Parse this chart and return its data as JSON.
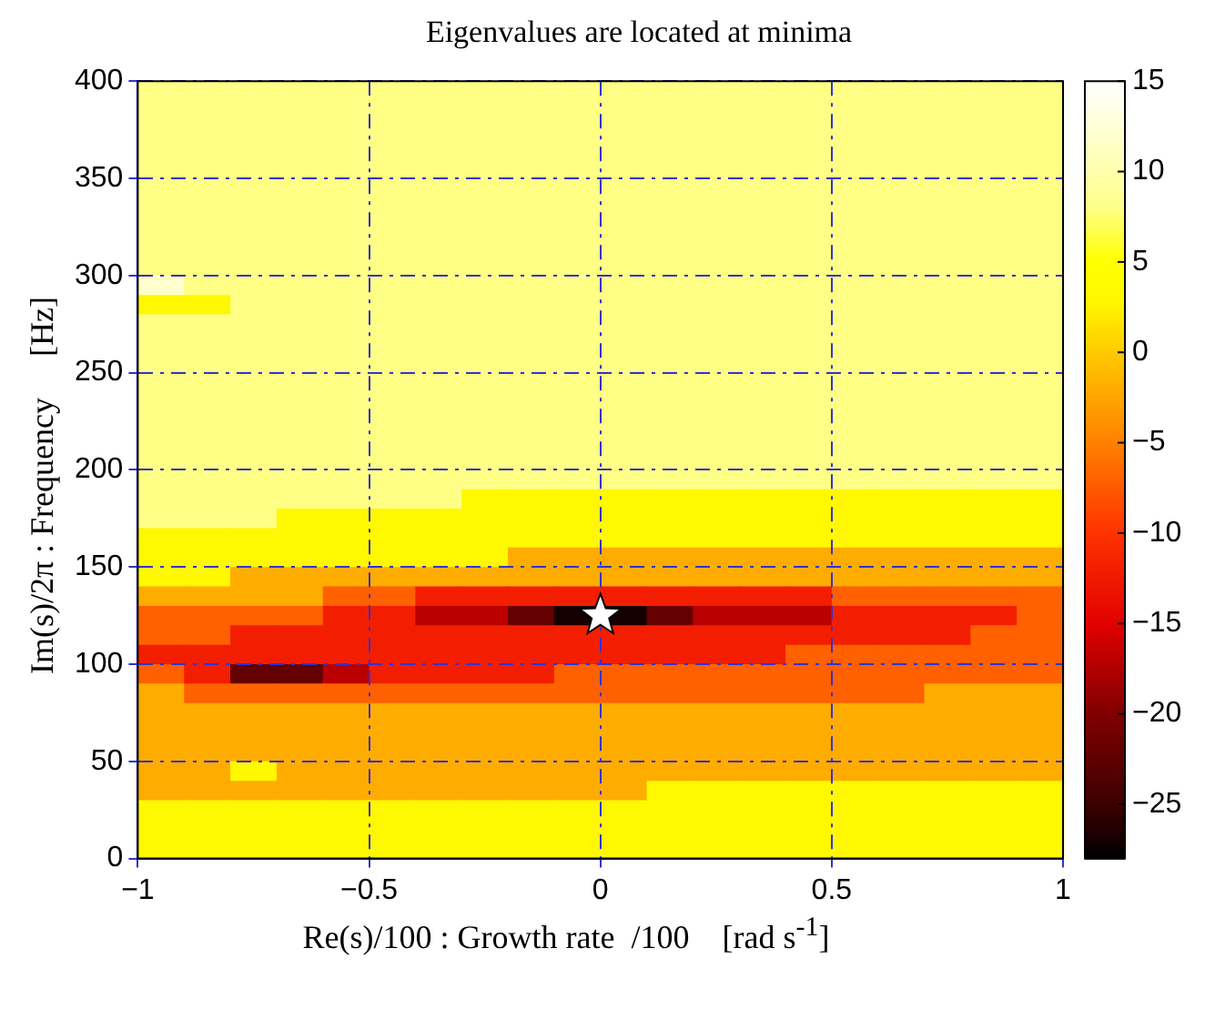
{
  "chart_data": {
    "type": "heatmap",
    "title": "Eigenvalues are located at minima",
    "xlabel": "Re(s)/100 : Growth rate  /100    [rad s$^{-1}$]",
    "ylabel": "Im(s)/2π : Frequency     [Hz]",
    "xlim": [
      -1,
      1
    ],
    "ylim": [
      0,
      400
    ],
    "xticks": [
      -1,
      -0.5,
      0,
      0.5,
      1
    ],
    "yticks": [
      0,
      50,
      100,
      150,
      200,
      250,
      300,
      350,
      400
    ],
    "grid": true,
    "marker": "star",
    "clim": [
      -28,
      15
    ],
    "cticks": [
      -25,
      -20,
      -15,
      -10,
      -5,
      0,
      5,
      10,
      15
    ],
    "series": [
      {
        "type": "scatter",
        "x": [
          0
        ],
        "values": [
          125
        ],
        "color": "#ffffff"
      }
    ],
    "cells": [
      [
        8,
        8,
        8,
        8,
        8,
        8,
        8,
        8,
        8,
        8,
        8,
        8,
        8,
        8,
        8,
        8,
        8,
        8,
        8,
        8
      ],
      [
        8,
        8,
        8,
        8,
        8,
        8,
        8,
        8,
        8,
        8,
        8,
        8,
        8,
        8,
        8,
        8,
        8,
        8,
        8,
        8
      ],
      [
        8,
        8,
        8,
        8,
        8,
        8,
        8,
        8,
        8,
        8,
        8,
        8,
        8,
        8,
        8,
        8,
        8,
        8,
        8,
        8
      ],
      [
        8,
        8,
        8,
        8,
        8,
        8,
        8,
        8,
        8,
        8,
        8,
        8,
        8,
        8,
        8,
        8,
        8,
        8,
        8,
        8
      ],
      [
        8,
        8,
        8,
        8,
        8,
        8,
        8,
        8,
        8,
        8,
        8,
        8,
        8,
        8,
        8,
        8,
        8,
        8,
        8,
        8
      ],
      [
        8,
        8,
        8,
        8,
        8,
        8,
        8,
        8,
        8,
        8,
        8,
        8,
        8,
        8,
        8,
        8,
        8,
        8,
        8,
        8
      ],
      [
        8,
        8,
        8,
        8,
        8,
        8,
        8,
        8,
        8,
        8,
        8,
        8,
        8,
        8,
        8,
        8,
        8,
        8,
        8,
        8
      ],
      [
        8,
        8,
        8,
        8,
        8,
        8,
        8,
        8,
        8,
        8,
        8,
        8,
        8,
        8,
        8,
        8,
        8,
        8,
        8,
        8
      ],
      [
        8,
        8,
        8,
        8,
        8,
        8,
        8,
        8,
        8,
        8,
        8,
        8,
        8,
        8,
        8,
        8,
        8,
        8,
        8,
        8
      ],
      [
        8,
        8,
        8,
        8,
        8,
        8,
        8,
        8,
        8,
        8,
        8,
        8,
        8,
        8,
        8,
        8,
        8,
        8,
        8,
        8
      ],
      [
        12,
        8,
        8,
        8,
        8,
        8,
        8,
        8,
        8,
        8,
        8,
        8,
        8,
        8,
        8,
        8,
        8,
        8,
        8,
        8
      ],
      [
        3,
        3,
        8,
        8,
        8,
        8,
        8,
        8,
        8,
        8,
        8,
        8,
        8,
        8,
        8,
        8,
        8,
        8,
        8,
        8
      ],
      [
        8,
        8,
        8,
        8,
        8,
        8,
        8,
        8,
        8,
        8,
        8,
        8,
        8,
        8,
        8,
        8,
        8,
        8,
        8,
        8
      ],
      [
        8,
        8,
        8,
        8,
        8,
        8,
        8,
        8,
        8,
        8,
        8,
        8,
        8,
        8,
        8,
        8,
        8,
        8,
        8,
        8
      ],
      [
        8,
        8,
        8,
        8,
        8,
        8,
        8,
        8,
        8,
        8,
        8,
        8,
        8,
        8,
        8,
        8,
        8,
        8,
        8,
        8
      ],
      [
        8,
        8,
        8,
        8,
        8,
        8,
        8,
        8,
        8,
        8,
        8,
        8,
        8,
        8,
        8,
        8,
        8,
        8,
        8,
        8
      ],
      [
        8,
        8,
        8,
        8,
        8,
        8,
        8,
        8,
        8,
        8,
        8,
        8,
        8,
        8,
        8,
        8,
        8,
        8,
        8,
        8
      ],
      [
        8,
        8,
        8,
        8,
        8,
        8,
        8,
        8,
        8,
        8,
        8,
        8,
        8,
        8,
        8,
        8,
        8,
        8,
        8,
        8
      ],
      [
        8,
        8,
        8,
        8,
        8,
        8,
        8,
        8,
        8,
        8,
        8,
        8,
        8,
        8,
        8,
        8,
        8,
        8,
        8,
        8
      ],
      [
        8,
        8,
        8,
        8,
        8,
        8,
        8,
        8,
        8,
        8,
        8,
        8,
        8,
        8,
        8,
        8,
        8,
        8,
        8,
        8
      ],
      [
        8,
        8,
        8,
        8,
        8,
        8,
        8,
        8,
        8,
        8,
        8,
        8,
        8,
        8,
        8,
        8,
        8,
        8,
        8,
        8
      ],
      [
        8,
        8,
        8,
        8,
        8,
        8,
        8,
        3,
        3,
        3,
        3,
        3,
        3,
        3,
        3,
        3,
        3,
        3,
        3,
        3
      ],
      [
        8,
        8,
        8,
        3,
        3,
        3,
        3,
        3,
        3,
        3,
        3,
        3,
        3,
        3,
        3,
        3,
        3,
        3,
        3,
        3
      ],
      [
        3,
        3,
        3,
        3,
        3,
        3,
        3,
        3,
        3,
        3,
        3,
        3,
        3,
        3,
        3,
        3,
        3,
        3,
        3,
        3
      ],
      [
        3,
        3,
        3,
        3,
        3,
        3,
        3,
        3,
        -2,
        -2,
        -2,
        -2,
        -2,
        -2,
        -2,
        -2,
        -2,
        -2,
        -2,
        -2
      ],
      [
        3,
        3,
        -2,
        -2,
        -2,
        -2,
        -2,
        -2,
        -2,
        -2,
        -2,
        -2,
        -2,
        -2,
        -2,
        -2,
        -2,
        -2,
        -2,
        -2
      ],
      [
        -2,
        -2,
        -2,
        -2,
        -7,
        -7,
        -12,
        -12,
        -12,
        -12,
        -12,
        -12,
        -12,
        -12,
        -12,
        -7,
        -7,
        -7,
        -7,
        -7
      ],
      [
        -7,
        -7,
        -7,
        -7,
        -12,
        -12,
        -17,
        -17,
        -22,
        -27,
        -27,
        -22,
        -17,
        -17,
        -17,
        -12,
        -12,
        -12,
        -12,
        -7
      ],
      [
        -7,
        -7,
        -12,
        -12,
        -12,
        -12,
        -12,
        -12,
        -12,
        -12,
        -12,
        -12,
        -12,
        -12,
        -12,
        -12,
        -12,
        -12,
        -7,
        -7
      ],
      [
        -12,
        -12,
        -12,
        -12,
        -12,
        -12,
        -12,
        -12,
        -12,
        -12,
        -12,
        -12,
        -12,
        -12,
        -7,
        -7,
        -7,
        -7,
        -7,
        -7
      ],
      [
        -7,
        -12,
        -22,
        -22,
        -17,
        -12,
        -12,
        -12,
        -12,
        -7,
        -7,
        -7,
        -7,
        -7,
        -7,
        -7,
        -7,
        -7,
        -7,
        -7
      ],
      [
        -2,
        -7,
        -7,
        -7,
        -7,
        -7,
        -7,
        -7,
        -7,
        -7,
        -7,
        -7,
        -7,
        -7,
        -7,
        -7,
        -7,
        -2,
        -2,
        -2
      ],
      [
        -2,
        -2,
        -2,
        -2,
        -2,
        -2,
        -2,
        -2,
        -2,
        -2,
        -2,
        -2,
        -2,
        -2,
        -2,
        -2,
        -2,
        -2,
        -2,
        -2
      ],
      [
        -2,
        -2,
        -2,
        -2,
        -2,
        -2,
        -2,
        -2,
        -2,
        -2,
        -2,
        -2,
        -2,
        -2,
        -2,
        -2,
        -2,
        -2,
        -2,
        -2
      ],
      [
        -2,
        -2,
        -2,
        -2,
        -2,
        -2,
        -2,
        -2,
        -2,
        -2,
        -2,
        -2,
        -2,
        -2,
        -2,
        -2,
        -2,
        -2,
        -2,
        -2
      ],
      [
        -2,
        -2,
        3,
        -2,
        -2,
        -2,
        -2,
        -2,
        -2,
        -2,
        -2,
        -2,
        -2,
        -2,
        -2,
        -2,
        -2,
        -2,
        -2,
        -2
      ],
      [
        -2,
        -2,
        -2,
        -2,
        -2,
        -2,
        -2,
        -2,
        -2,
        -2,
        -2,
        3,
        3,
        3,
        3,
        3,
        3,
        3,
        3,
        3
      ],
      [
        3,
        3,
        3,
        3,
        3,
        3,
        3,
        3,
        3,
        3,
        3,
        3,
        3,
        3,
        3,
        3,
        3,
        3,
        3,
        3
      ],
      [
        3,
        3,
        3,
        3,
        3,
        3,
        3,
        3,
        3,
        3,
        3,
        3,
        3,
        3,
        3,
        3,
        3,
        3,
        3,
        3
      ],
      [
        3,
        3,
        3,
        3,
        3,
        3,
        3,
        3,
        3,
        3,
        3,
        3,
        3,
        3,
        3,
        3,
        3,
        3,
        3,
        3
      ]
    ]
  }
}
